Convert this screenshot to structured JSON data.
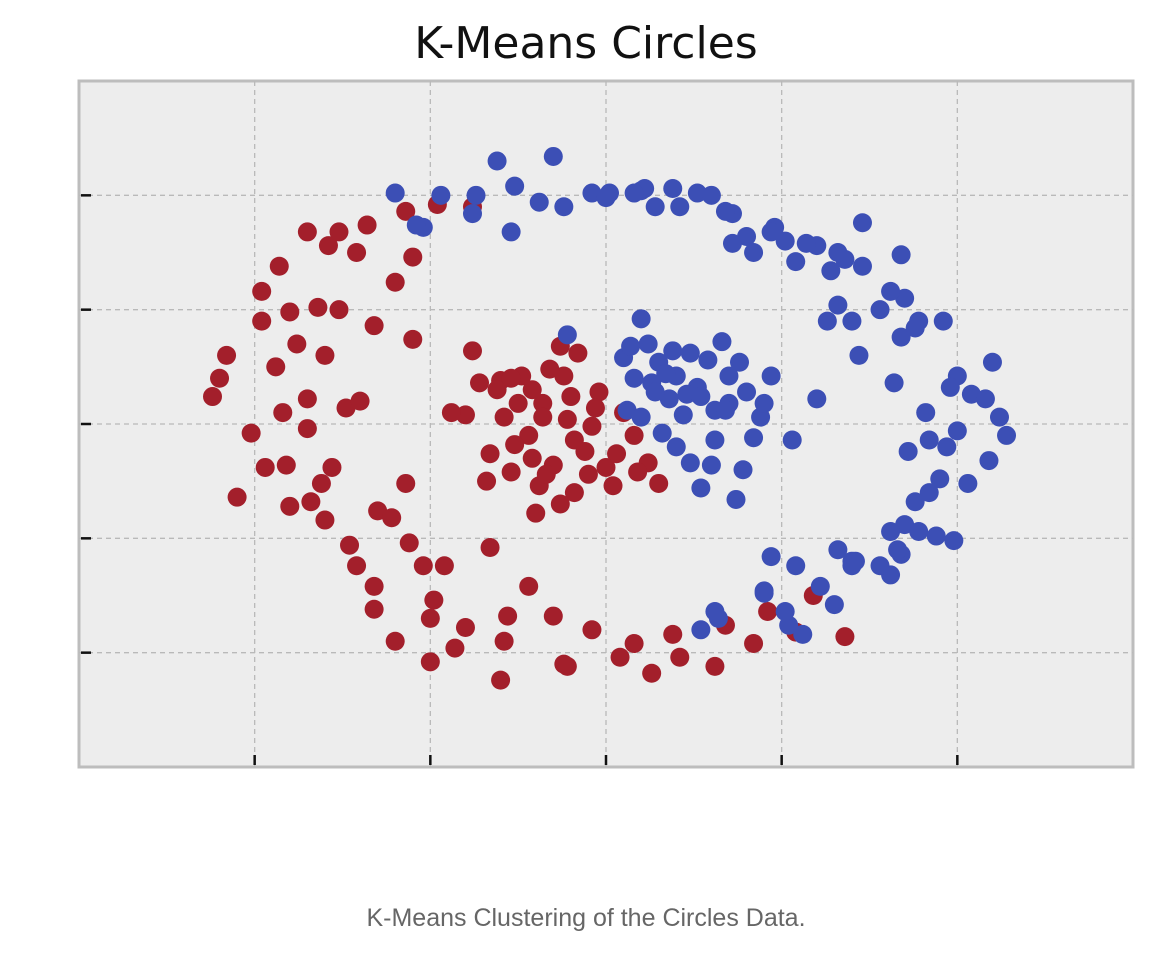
{
  "chart_data": {
    "type": "scatter",
    "title": "K-Means Circles",
    "xlabel": "",
    "ylabel": "",
    "xlim": [
      -1.5,
      1.5
    ],
    "ylim": [
      -1.5,
      1.5
    ],
    "xticks": [
      -1.0,
      -0.5,
      0.0,
      0.5,
      1.0
    ],
    "yticks": [
      -1.0,
      -0.5,
      0.0,
      0.5,
      1.0
    ],
    "grid": true,
    "series": [
      {
        "color": "#a31f2b",
        "points": [
          [
            -1.01,
            -0.04
          ],
          [
            -1.12,
            0.12
          ],
          [
            -0.98,
            0.45
          ],
          [
            -0.93,
            0.69
          ],
          [
            -0.79,
            0.78
          ],
          [
            -0.57,
            0.93
          ],
          [
            -0.48,
            0.96
          ],
          [
            -0.71,
            0.75
          ],
          [
            -0.82,
            0.51
          ],
          [
            -0.94,
            0.25
          ],
          [
            -0.8,
            0.3
          ],
          [
            -0.74,
            0.07
          ],
          [
            -0.91,
            -0.18
          ],
          [
            -0.84,
            -0.34
          ],
          [
            -0.65,
            -0.38
          ],
          [
            -0.73,
            -0.53
          ],
          [
            -0.66,
            -0.71
          ],
          [
            -0.52,
            -0.62
          ],
          [
            -0.49,
            -0.77
          ],
          [
            -0.4,
            -0.89
          ],
          [
            -0.29,
            -0.95
          ],
          [
            -0.12,
            -1.05
          ],
          [
            0.04,
            -1.02
          ],
          [
            0.13,
            -1.09
          ],
          [
            0.21,
            -1.02
          ],
          [
            0.31,
            -1.06
          ],
          [
            0.42,
            -0.96
          ],
          [
            0.54,
            -0.91
          ],
          [
            0.59,
            -0.75
          ],
          [
            -0.33,
            -0.54
          ],
          [
            -0.22,
            -0.71
          ],
          [
            -0.5,
            -1.04
          ],
          [
            -0.46,
            -0.62
          ],
          [
            -0.56,
            -0.52
          ],
          [
            -0.78,
            -0.19
          ],
          [
            -0.7,
            0.1
          ],
          [
            -0.85,
            -0.02
          ],
          [
            -0.92,
            0.05
          ],
          [
            -1.1,
            0.2
          ],
          [
            -0.98,
            0.58
          ],
          [
            -0.76,
            0.5
          ],
          [
            -0.66,
            0.43
          ],
          [
            -0.6,
            0.62
          ],
          [
            -0.55,
            0.73
          ],
          [
            -0.38,
            0.95
          ],
          [
            -0.55,
            0.37
          ],
          [
            -0.9,
            0.49
          ],
          [
            -1.08,
            0.3
          ],
          [
            -0.97,
            -0.19
          ],
          [
            -1.05,
            -0.32
          ],
          [
            -0.9,
            -0.36
          ],
          [
            -0.8,
            -0.42
          ],
          [
            -0.71,
            -0.62
          ],
          [
            -0.66,
            -0.81
          ],
          [
            -0.6,
            -0.95
          ],
          [
            -0.5,
            -0.85
          ],
          [
            -0.43,
            -0.98
          ],
          [
            -0.3,
            -1.12
          ],
          [
            -0.15,
            -0.84
          ],
          [
            -0.04,
            -0.9
          ],
          [
            0.08,
            -0.96
          ],
          [
            0.19,
            -0.92
          ],
          [
            0.34,
            -0.88
          ],
          [
            0.46,
            -0.82
          ],
          [
            0.68,
            -0.93
          ],
          [
            -0.68,
            0.87
          ],
          [
            -0.76,
            0.84
          ],
          [
            -0.85,
            0.84
          ],
          [
            -0.88,
            0.35
          ],
          [
            -0.85,
            0.11
          ],
          [
            -0.81,
            -0.26
          ],
          [
            -0.61,
            -0.41
          ],
          [
            -0.57,
            -0.26
          ],
          [
            -0.28,
            -0.84
          ],
          [
            -0.11,
            -1.06
          ],
          [
            -0.38,
            0.32
          ],
          [
            -0.3,
            0.19
          ],
          [
            -0.18,
            0.09
          ],
          [
            -0.12,
            0.21
          ],
          [
            -0.09,
            -0.07
          ],
          [
            -0.02,
            0.14
          ],
          [
            0.03,
            -0.13
          ],
          [
            -0.22,
            -0.05
          ],
          [
            -0.15,
            -0.18
          ],
          [
            -0.29,
            0.03
          ],
          [
            -0.26,
            -0.09
          ],
          [
            -0.05,
            -0.22
          ],
          [
            0.08,
            -0.05
          ],
          [
            0.12,
            -0.17
          ],
          [
            -0.4,
            0.04
          ],
          [
            -0.33,
            -0.13
          ],
          [
            -0.21,
            0.15
          ],
          [
            -0.1,
            0.12
          ],
          [
            -0.19,
            -0.27
          ],
          [
            -0.04,
            -0.01
          ],
          [
            0.05,
            0.05
          ],
          [
            -0.13,
            -0.35
          ],
          [
            -0.2,
            -0.39
          ],
          [
            0.15,
            -0.26
          ],
          [
            -0.25,
            0.09
          ],
          [
            -0.31,
            0.15
          ],
          [
            -0.16,
            0.24
          ],
          [
            -0.08,
            0.31
          ],
          [
            -0.24,
            0.21
          ],
          [
            -0.36,
            0.18
          ],
          [
            -0.06,
            -0.12
          ],
          [
            0.0,
            -0.19
          ],
          [
            -0.11,
            0.02
          ],
          [
            -0.27,
            -0.21
          ],
          [
            -0.34,
            -0.25
          ],
          [
            -0.18,
            0.03
          ],
          [
            0.09,
            -0.21
          ],
          [
            -0.09,
            -0.3
          ],
          [
            -0.21,
            -0.15
          ],
          [
            -0.03,
            0.07
          ],
          [
            -0.13,
            0.34
          ],
          [
            -0.27,
            0.2
          ],
          [
            -0.44,
            0.05
          ],
          [
            -0.17,
            -0.22
          ],
          [
            0.02,
            -0.27
          ]
        ]
      },
      {
        "color": "#3c4fb5",
        "points": [
          [
            -0.47,
            1.0
          ],
          [
            -0.31,
            1.15
          ],
          [
            -0.15,
            1.17
          ],
          [
            0.01,
            1.01
          ],
          [
            0.1,
            1.02
          ],
          [
            0.26,
            1.01
          ],
          [
            0.36,
            0.92
          ],
          [
            0.48,
            0.86
          ],
          [
            0.6,
            0.78
          ],
          [
            0.73,
            0.69
          ],
          [
            0.85,
            0.55
          ],
          [
            0.96,
            0.45
          ],
          [
            1.04,
            0.13
          ],
          [
            1.12,
            0.03
          ],
          [
            1.14,
            -0.05
          ],
          [
            1.09,
            -0.16
          ],
          [
            1.03,
            -0.26
          ],
          [
            0.94,
            -0.49
          ],
          [
            0.84,
            -0.57
          ],
          [
            0.7,
            -0.62
          ],
          [
            0.61,
            -0.71
          ],
          [
            0.52,
            -0.88
          ],
          [
            0.31,
            -0.82
          ],
          [
            0.45,
            -0.73
          ],
          [
            0.7,
            -0.6
          ],
          [
            0.66,
            -0.55
          ],
          [
            0.99,
            -0.51
          ],
          [
            0.92,
            -0.3
          ],
          [
            0.92,
            -0.07
          ],
          [
            0.91,
            0.05
          ],
          [
            0.82,
            0.18
          ],
          [
            0.84,
            0.38
          ],
          [
            0.81,
            0.58
          ],
          [
            0.68,
            0.72
          ],
          [
            0.73,
            0.88
          ],
          [
            0.64,
            0.67
          ],
          [
            0.57,
            0.79
          ],
          [
            0.47,
            0.84
          ],
          [
            0.34,
            0.93
          ],
          [
            0.21,
            0.95
          ],
          [
            0.11,
            1.03
          ],
          [
            -0.04,
            1.01
          ],
          [
            -0.19,
            0.97
          ],
          [
            -0.27,
            0.84
          ],
          [
            -0.38,
            0.92
          ],
          [
            -0.52,
            0.86
          ],
          [
            -0.37,
            1.0
          ],
          [
            -0.6,
            1.01
          ],
          [
            -0.12,
            0.95
          ],
          [
            0.0,
            0.99
          ],
          [
            0.08,
            1.01
          ],
          [
            0.19,
            1.03
          ],
          [
            0.3,
            1.0
          ],
          [
            0.4,
            0.82
          ],
          [
            0.54,
            0.71
          ],
          [
            0.66,
            0.52
          ],
          [
            0.88,
            0.42
          ],
          [
            1.0,
            0.21
          ],
          [
            1.1,
            0.27
          ],
          [
            0.98,
            0.16
          ],
          [
            0.97,
            -0.1
          ],
          [
            0.86,
            -0.12
          ],
          [
            0.95,
            -0.24
          ],
          [
            0.85,
            -0.44
          ],
          [
            0.81,
            -0.66
          ],
          [
            0.65,
            -0.79
          ],
          [
            0.56,
            -0.92
          ],
          [
            0.45,
            -0.74
          ],
          [
            0.27,
            -0.9
          ],
          [
            0.32,
            -0.85
          ],
          [
            0.51,
            -0.82
          ],
          [
            0.84,
            0.74
          ],
          [
            0.78,
            0.5
          ],
          [
            0.89,
            0.45
          ],
          [
            0.72,
            0.3
          ],
          [
            0.7,
            0.45
          ],
          [
            0.81,
            -0.47
          ],
          [
            0.88,
            -0.34
          ],
          [
            -0.54,
            0.87
          ],
          [
            -0.26,
            1.04
          ],
          [
            0.14,
            0.95
          ],
          [
            0.42,
            0.75
          ],
          [
            0.51,
            0.8
          ],
          [
            0.36,
            0.79
          ],
          [
            0.63,
            0.45
          ],
          [
            0.66,
            0.75
          ],
          [
            1.0,
            -0.03
          ],
          [
            1.08,
            0.11
          ],
          [
            0.71,
            -0.6
          ],
          [
            0.83,
            -0.55
          ],
          [
            0.89,
            -0.47
          ],
          [
            0.78,
            -0.62
          ],
          [
            0.47,
            -0.58
          ],
          [
            0.54,
            -0.62
          ],
          [
            0.1,
            0.46
          ],
          [
            0.19,
            0.32
          ],
          [
            0.26,
            0.16
          ],
          [
            0.35,
            0.09
          ],
          [
            0.44,
            0.03
          ],
          [
            0.05,
            0.29
          ],
          [
            0.13,
            0.18
          ],
          [
            0.22,
            0.04
          ],
          [
            0.31,
            -0.07
          ],
          [
            0.39,
            -0.2
          ],
          [
            0.16,
            -0.04
          ],
          [
            0.24,
            -0.17
          ],
          [
            0.06,
            0.06
          ],
          [
            0.47,
            0.21
          ],
          [
            0.29,
            0.28
          ],
          [
            0.18,
            0.11
          ],
          [
            0.12,
            0.35
          ],
          [
            0.4,
            0.14
          ],
          [
            0.3,
            -0.18
          ],
          [
            0.37,
            -0.33
          ],
          [
            0.1,
            0.03
          ],
          [
            0.2,
            0.21
          ],
          [
            0.33,
            0.36
          ],
          [
            0.15,
            0.27
          ],
          [
            0.24,
            0.31
          ],
          [
            0.35,
            0.21
          ],
          [
            0.45,
            0.09
          ],
          [
            0.31,
            0.06
          ],
          [
            0.2,
            -0.1
          ],
          [
            0.42,
            -0.06
          ],
          [
            0.27,
            -0.28
          ],
          [
            0.14,
            0.14
          ],
          [
            0.38,
            0.27
          ],
          [
            0.08,
            0.2
          ],
          [
            0.53,
            -0.07
          ],
          [
            0.6,
            0.11
          ],
          [
            0.07,
            0.34
          ],
          [
            -0.11,
            0.39
          ],
          [
            0.34,
            0.06
          ],
          [
            0.23,
            0.13
          ],
          [
            0.17,
            0.22
          ],
          [
            0.27,
            0.12
          ]
        ]
      }
    ]
  },
  "caption": "K-Means Clustering of the Circles Data."
}
